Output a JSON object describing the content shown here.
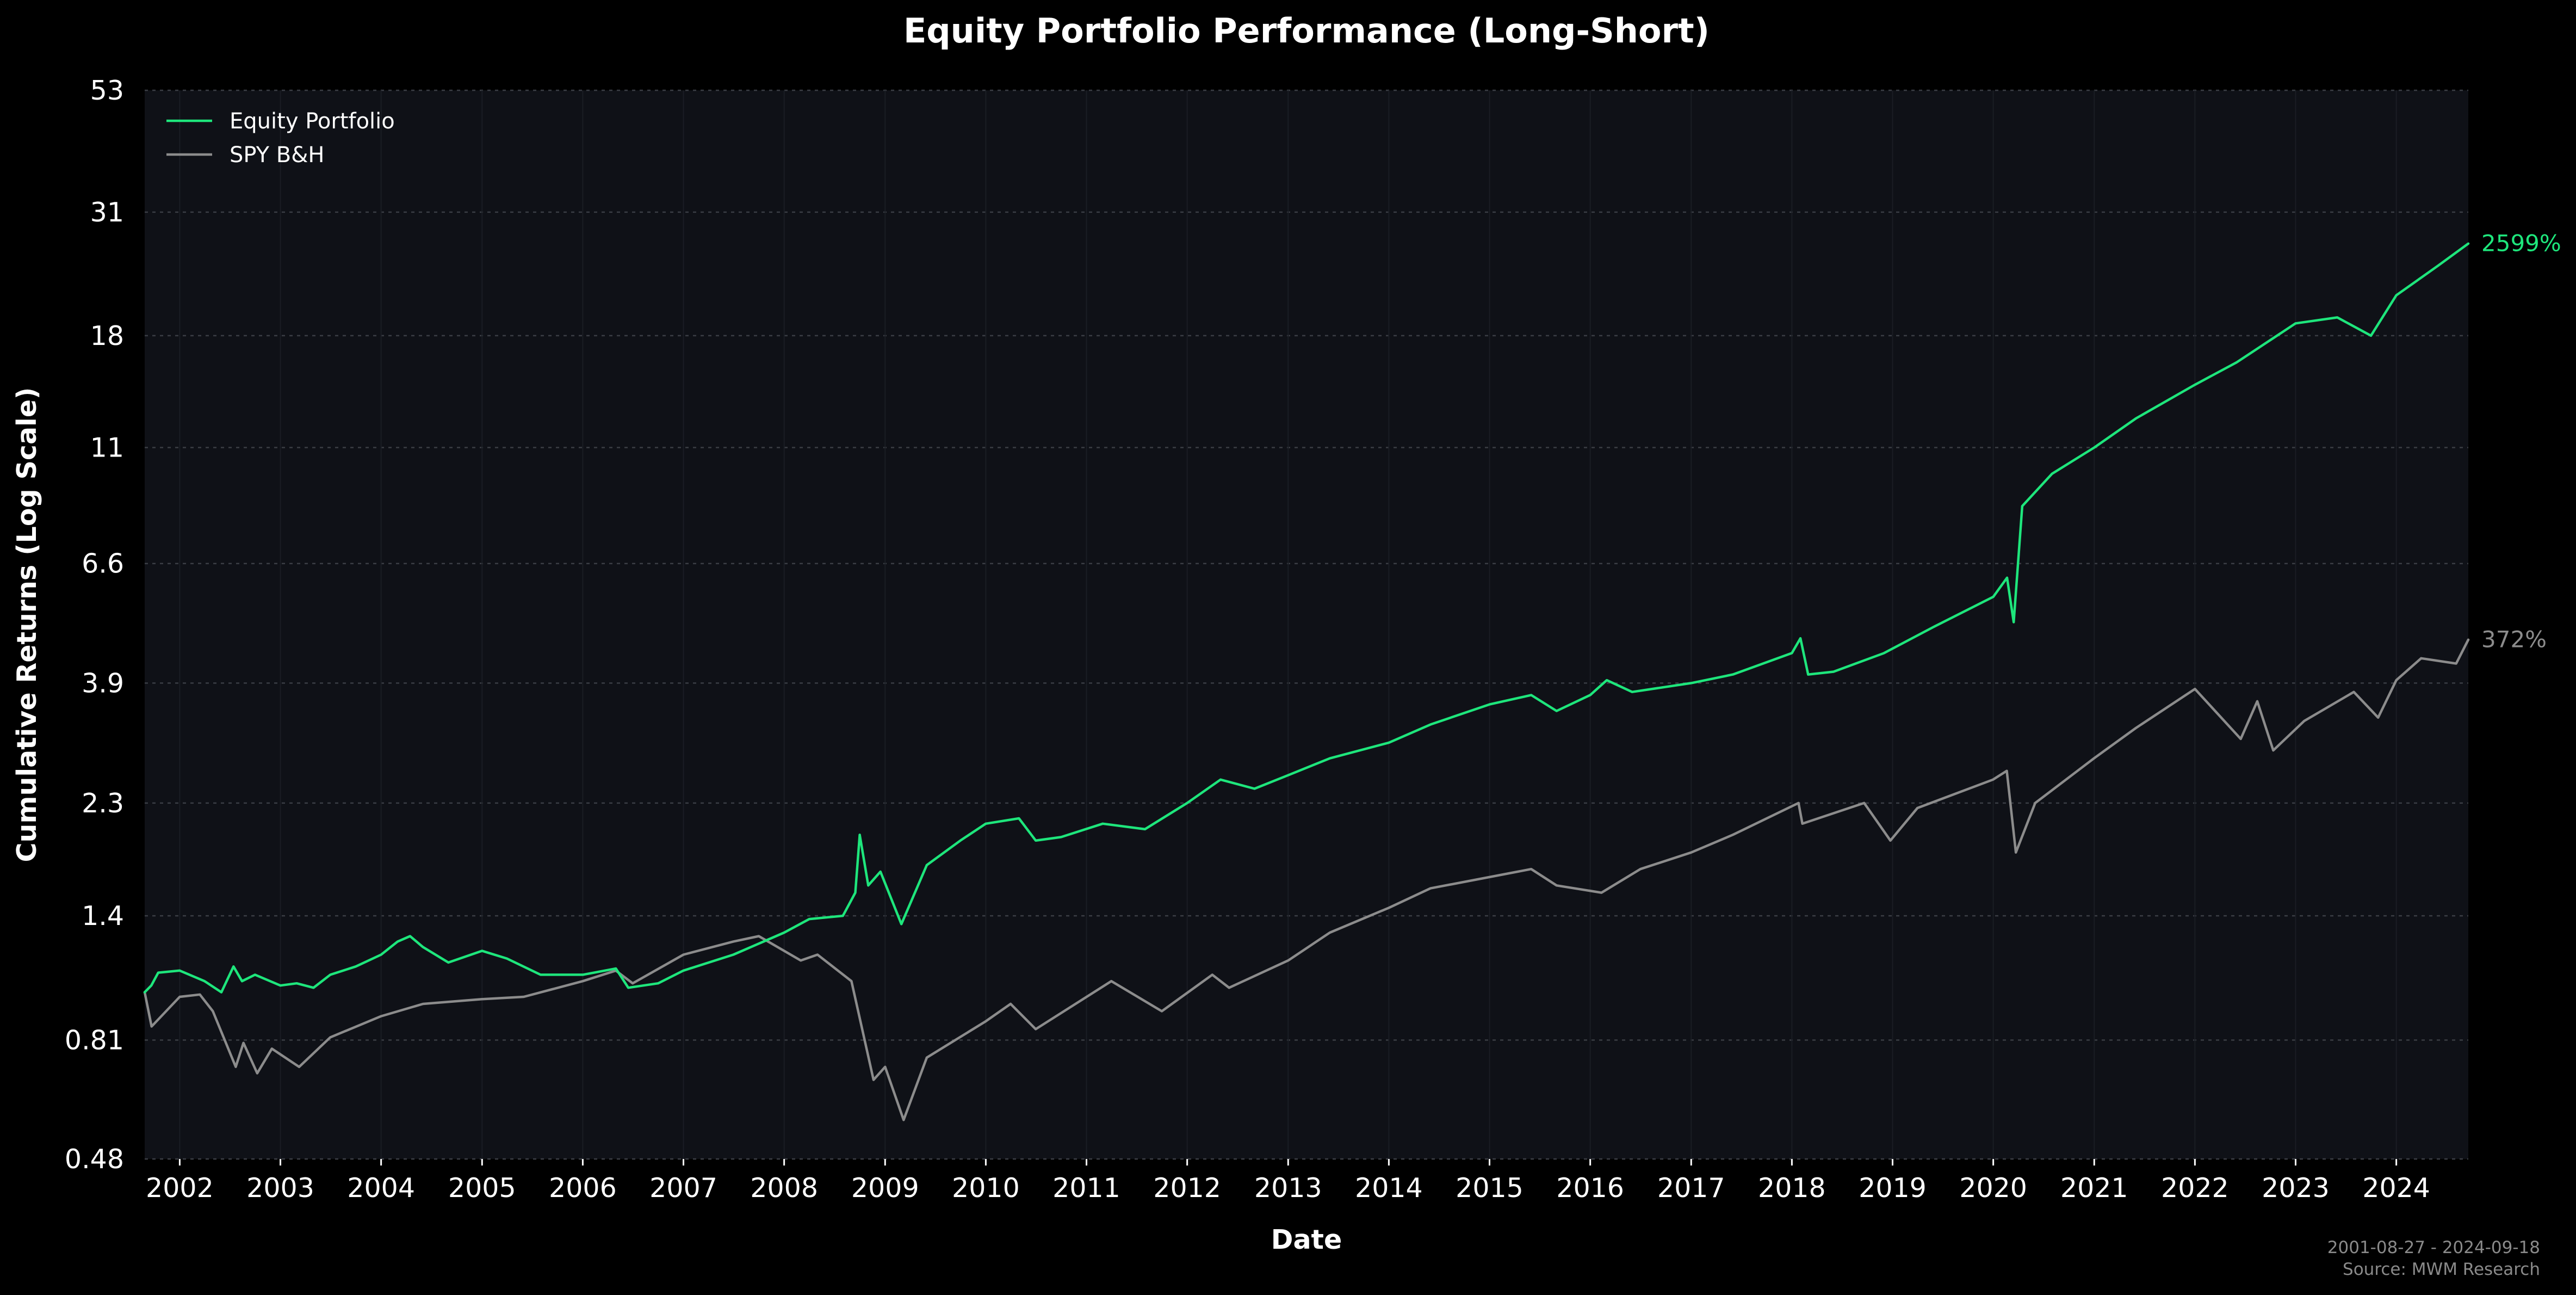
{
  "chart_data": {
    "type": "line",
    "title": "Equity Portfolio Performance (Long-Short)",
    "xlabel": "Date",
    "ylabel": "Cumulative Returns (Log Scale)",
    "yscale": "log",
    "ylim": [
      0.48,
      53
    ],
    "xlim": [
      "2001-08-27",
      "2024-09-18"
    ],
    "yticks": [
      {
        "value": 0.48,
        "label": "0.48"
      },
      {
        "value": 0.81,
        "label": "0.81"
      },
      {
        "value": 1.4,
        "label": "1.4"
      },
      {
        "value": 2.3,
        "label": "2.3"
      },
      {
        "value": 3.9,
        "label": "3.9"
      },
      {
        "value": 6.6,
        "label": "6.6"
      },
      {
        "value": 11,
        "label": "11"
      },
      {
        "value": 18,
        "label": "18"
      },
      {
        "value": 31,
        "label": "31"
      },
      {
        "value": 53,
        "label": "53"
      }
    ],
    "xticks": [
      "2002",
      "2003",
      "2004",
      "2005",
      "2006",
      "2007",
      "2008",
      "2009",
      "2010",
      "2011",
      "2012",
      "2013",
      "2014",
      "2015",
      "2016",
      "2017",
      "2018",
      "2019",
      "2020",
      "2021",
      "2022",
      "2023",
      "2024"
    ],
    "grid": true,
    "legend_position": "top-left",
    "series": [
      {
        "name": "Equity Portfolio",
        "color": "#1ee67c",
        "end_label": "2599%",
        "points": [
          [
            "2001-08-27",
            1.0
          ],
          [
            "2001-09-20",
            1.03
          ],
          [
            "2001-10-15",
            1.09
          ],
          [
            "2002-01-01",
            1.1
          ],
          [
            "2002-04-01",
            1.05
          ],
          [
            "2002-06-01",
            1.0
          ],
          [
            "2002-07-15",
            1.12
          ],
          [
            "2002-08-15",
            1.05
          ],
          [
            "2002-10-01",
            1.08
          ],
          [
            "2003-01-01",
            1.03
          ],
          [
            "2003-03-01",
            1.04
          ],
          [
            "2003-05-01",
            1.02
          ],
          [
            "2003-07-01",
            1.08
          ],
          [
            "2003-10-01",
            1.12
          ],
          [
            "2004-01-01",
            1.18
          ],
          [
            "2004-03-01",
            1.25
          ],
          [
            "2004-04-15",
            1.28
          ],
          [
            "2004-06-01",
            1.22
          ],
          [
            "2004-09-01",
            1.14
          ],
          [
            "2005-01-01",
            1.2
          ],
          [
            "2005-04-01",
            1.16
          ],
          [
            "2005-08-01",
            1.08
          ],
          [
            "2006-01-01",
            1.08
          ],
          [
            "2006-05-01",
            1.11
          ],
          [
            "2006-06-15",
            1.02
          ],
          [
            "2006-10-01",
            1.04
          ],
          [
            "2007-01-01",
            1.1
          ],
          [
            "2007-07-01",
            1.18
          ],
          [
            "2008-01-01",
            1.3
          ],
          [
            "2008-04-01",
            1.38
          ],
          [
            "2008-08-01",
            1.4
          ],
          [
            "2008-09-15",
            1.55
          ],
          [
            "2008-10-01",
            2.0
          ],
          [
            "2008-11-01",
            1.6
          ],
          [
            "2008-12-15",
            1.7
          ],
          [
            "2009-03-01",
            1.35
          ],
          [
            "2009-06-01",
            1.75
          ],
          [
            "2009-10-01",
            1.95
          ],
          [
            "2010-01-01",
            2.1
          ],
          [
            "2010-05-01",
            2.15
          ],
          [
            "2010-07-01",
            1.95
          ],
          [
            "2010-10-01",
            1.98
          ],
          [
            "2011-03-01",
            2.1
          ],
          [
            "2011-08-01",
            2.05
          ],
          [
            "2012-01-01",
            2.3
          ],
          [
            "2012-05-01",
            2.55
          ],
          [
            "2012-09-01",
            2.45
          ],
          [
            "2013-01-01",
            2.6
          ],
          [
            "2013-06-01",
            2.8
          ],
          [
            "2014-01-01",
            3.0
          ],
          [
            "2014-06-01",
            3.25
          ],
          [
            "2015-01-01",
            3.55
          ],
          [
            "2015-06-01",
            3.7
          ],
          [
            "2015-09-01",
            3.45
          ],
          [
            "2016-01-01",
            3.7
          ],
          [
            "2016-03-01",
            3.95
          ],
          [
            "2016-06-01",
            3.75
          ],
          [
            "2017-01-01",
            3.9
          ],
          [
            "2017-06-01",
            4.05
          ],
          [
            "2018-01-01",
            4.45
          ],
          [
            "2018-02-01",
            4.75
          ],
          [
            "2018-03-01",
            4.05
          ],
          [
            "2018-06-01",
            4.1
          ],
          [
            "2018-12-01",
            4.45
          ],
          [
            "2019-06-01",
            5.0
          ],
          [
            "2020-01-01",
            5.7
          ],
          [
            "2020-02-20",
            6.2
          ],
          [
            "2020-03-15",
            5.1
          ],
          [
            "2020-04-15",
            8.5
          ],
          [
            "2020-08-01",
            9.8
          ],
          [
            "2021-01-01",
            11.0
          ],
          [
            "2021-06-01",
            12.5
          ],
          [
            "2022-01-01",
            14.5
          ],
          [
            "2022-06-01",
            16.0
          ],
          [
            "2023-01-01",
            19.0
          ],
          [
            "2023-06-01",
            19.5
          ],
          [
            "2023-10-01",
            18.0
          ],
          [
            "2024-01-01",
            21.5
          ],
          [
            "2024-06-01",
            24.5
          ],
          [
            "2024-09-18",
            26.99
          ]
        ]
      },
      {
        "name": "SPY B&H",
        "color": "#8c8c8c",
        "end_label": "372%",
        "points": [
          [
            "2001-08-27",
            1.0
          ],
          [
            "2001-09-21",
            0.86
          ],
          [
            "2002-01-01",
            0.98
          ],
          [
            "2002-03-15",
            0.99
          ],
          [
            "2002-05-01",
            0.92
          ],
          [
            "2002-07-23",
            0.72
          ],
          [
            "2002-08-20",
            0.8
          ],
          [
            "2002-10-09",
            0.7
          ],
          [
            "2002-12-01",
            0.78
          ],
          [
            "2003-03-10",
            0.72
          ],
          [
            "2003-07-01",
            0.82
          ],
          [
            "2004-01-01",
            0.9
          ],
          [
            "2004-06-01",
            0.95
          ],
          [
            "2005-01-01",
            0.97
          ],
          [
            "2005-06-01",
            0.98
          ],
          [
            "2006-01-01",
            1.05
          ],
          [
            "2006-05-01",
            1.1
          ],
          [
            "2006-07-01",
            1.04
          ],
          [
            "2007-01-01",
            1.18
          ],
          [
            "2007-07-01",
            1.25
          ],
          [
            "2007-10-01",
            1.28
          ],
          [
            "2008-03-01",
            1.15
          ],
          [
            "2008-05-01",
            1.18
          ],
          [
            "2008-09-01",
            1.05
          ],
          [
            "2008-11-20",
            0.68
          ],
          [
            "2009-01-01",
            0.72
          ],
          [
            "2009-03-09",
            0.57
          ],
          [
            "2009-06-01",
            0.75
          ],
          [
            "2010-01-01",
            0.88
          ],
          [
            "2010-04-01",
            0.95
          ],
          [
            "2010-07-01",
            0.85
          ],
          [
            "2011-04-01",
            1.05
          ],
          [
            "2011-10-01",
            0.92
          ],
          [
            "2012-04-01",
            1.08
          ],
          [
            "2012-06-01",
            1.02
          ],
          [
            "2013-01-01",
            1.15
          ],
          [
            "2013-06-01",
            1.3
          ],
          [
            "2014-01-01",
            1.45
          ],
          [
            "2014-06-01",
            1.58
          ],
          [
            "2015-06-01",
            1.72
          ],
          [
            "2015-09-01",
            1.6
          ],
          [
            "2016-02-11",
            1.55
          ],
          [
            "2016-07-01",
            1.72
          ],
          [
            "2017-01-01",
            1.85
          ],
          [
            "2017-06-01",
            2.0
          ],
          [
            "2018-01-25",
            2.3
          ],
          [
            "2018-02-08",
            2.1
          ],
          [
            "2018-09-20",
            2.3
          ],
          [
            "2018-12-24",
            1.95
          ],
          [
            "2019-04-01",
            2.25
          ],
          [
            "2019-12-31",
            2.55
          ],
          [
            "2020-02-19",
            2.65
          ],
          [
            "2020-03-23",
            1.85
          ],
          [
            "2020-06-01",
            2.3
          ],
          [
            "2020-12-31",
            2.8
          ],
          [
            "2021-06-01",
            3.2
          ],
          [
            "2022-01-01",
            3.8
          ],
          [
            "2022-06-16",
            3.05
          ],
          [
            "2022-08-15",
            3.6
          ],
          [
            "2022-10-12",
            2.9
          ],
          [
            "2023-02-01",
            3.3
          ],
          [
            "2023-07-31",
            3.75
          ],
          [
            "2023-10-27",
            3.35
          ],
          [
            "2024-01-01",
            3.95
          ],
          [
            "2024-03-31",
            4.35
          ],
          [
            "2024-08-05",
            4.25
          ],
          [
            "2024-09-18",
            4.72
          ]
        ]
      }
    ]
  },
  "footer": {
    "date_range": "2001-08-27 - 2024-09-18",
    "source": "Source: MWM Research"
  }
}
